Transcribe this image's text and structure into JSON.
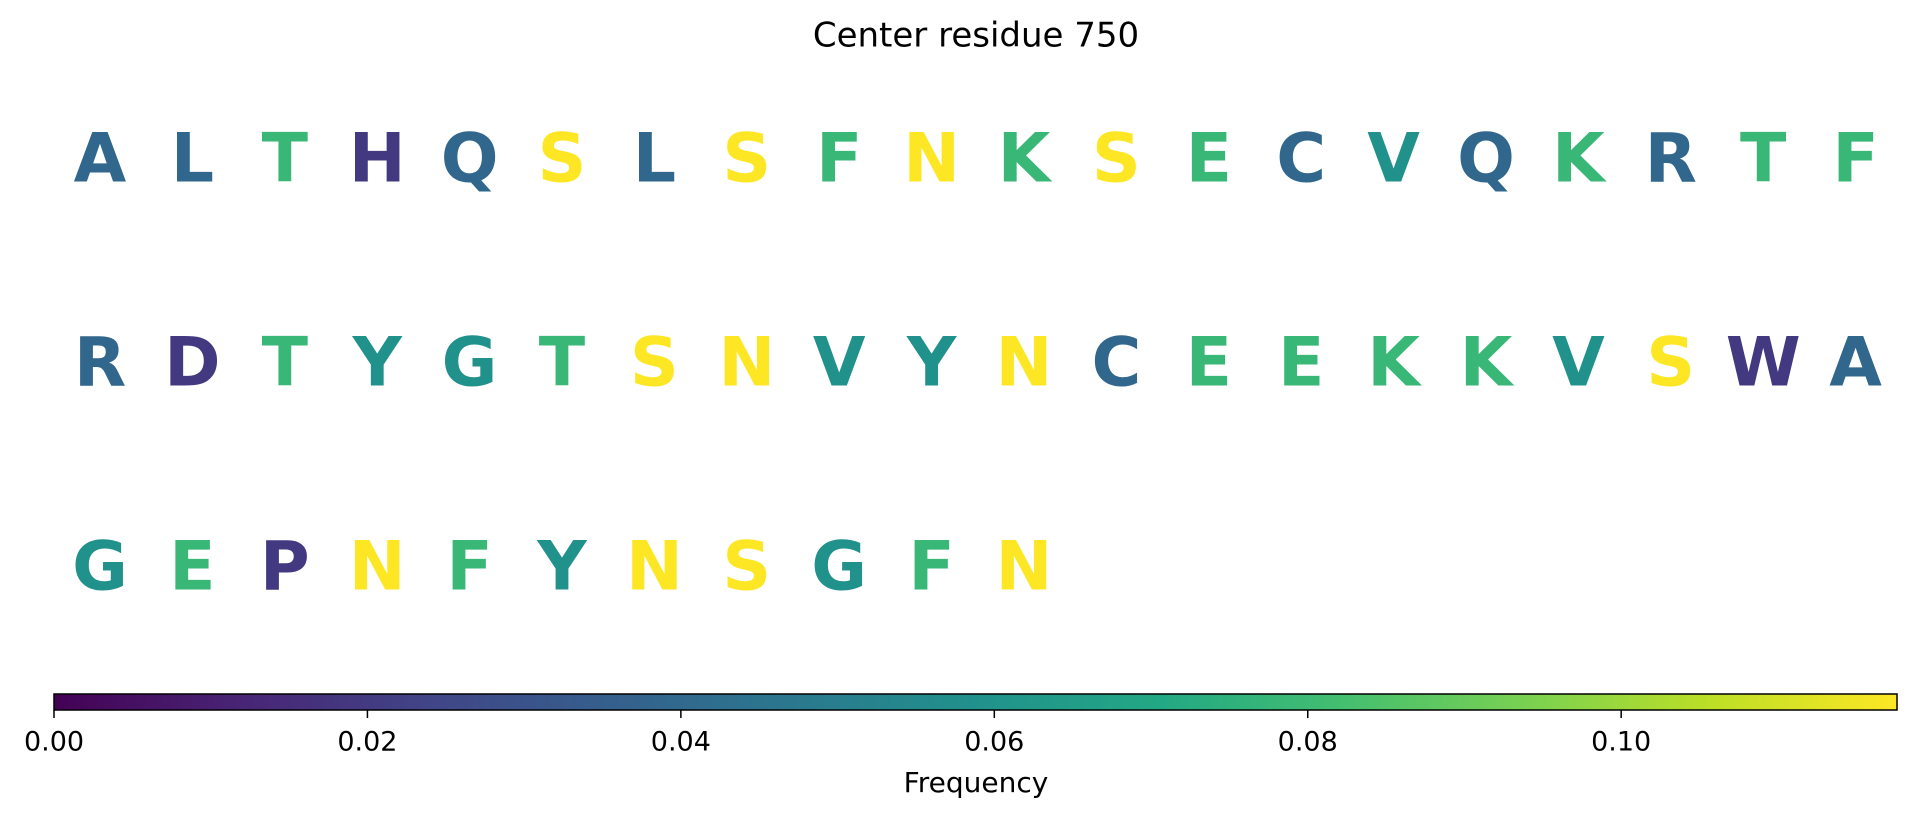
{
  "chart_data": {
    "type": "sequence",
    "title": "Center residue 750",
    "residues": [
      "A",
      "L",
      "T",
      "H",
      "Q",
      "S",
      "L",
      "S",
      "F",
      "N",
      "K",
      "S",
      "E",
      "C",
      "V",
      "Q",
      "K",
      "R",
      "T",
      "F",
      "R",
      "D",
      "T",
      "Y",
      "G",
      "T",
      "S",
      "N",
      "V",
      "Y",
      "N",
      "C",
      "E",
      "E",
      "K",
      "K",
      "V",
      "S",
      "W",
      "A",
      "G",
      "E",
      "P",
      "N",
      "F",
      "Y",
      "N",
      "S",
      "G",
      "F",
      "N"
    ],
    "values": [
      0.0392,
      0.0392,
      0.0784,
      0.0196,
      0.0392,
      0.1176,
      0.0392,
      0.1176,
      0.0784,
      0.1176,
      0.0784,
      0.1176,
      0.0784,
      0.0392,
      0.0588,
      0.0392,
      0.0784,
      0.0392,
      0.0784,
      0.0784,
      0.0392,
      0.0196,
      0.0784,
      0.0588,
      0.0588,
      0.0784,
      0.1176,
      0.1176,
      0.0588,
      0.0588,
      0.1176,
      0.0392,
      0.0784,
      0.0784,
      0.0784,
      0.0784,
      0.0588,
      0.1176,
      0.0196,
      0.0392,
      0.0588,
      0.0784,
      0.0196,
      0.1176,
      0.0784,
      0.0588,
      0.1176,
      0.1176,
      0.0588,
      0.0784,
      0.1176
    ],
    "colormap": "viridis",
    "clim": [
      0,
      0.1176
    ],
    "cticks": [
      {
        "value": 0,
        "label": "0.00"
      },
      {
        "value": 0.02,
        "label": "0.02"
      },
      {
        "value": 0.04,
        "label": "0.04"
      },
      {
        "value": 0.06,
        "label": "0.06"
      },
      {
        "value": 0.08,
        "label": "0.08"
      },
      {
        "value": 0.1,
        "label": "0.10"
      }
    ],
    "colorbar_label": "Frequency"
  }
}
